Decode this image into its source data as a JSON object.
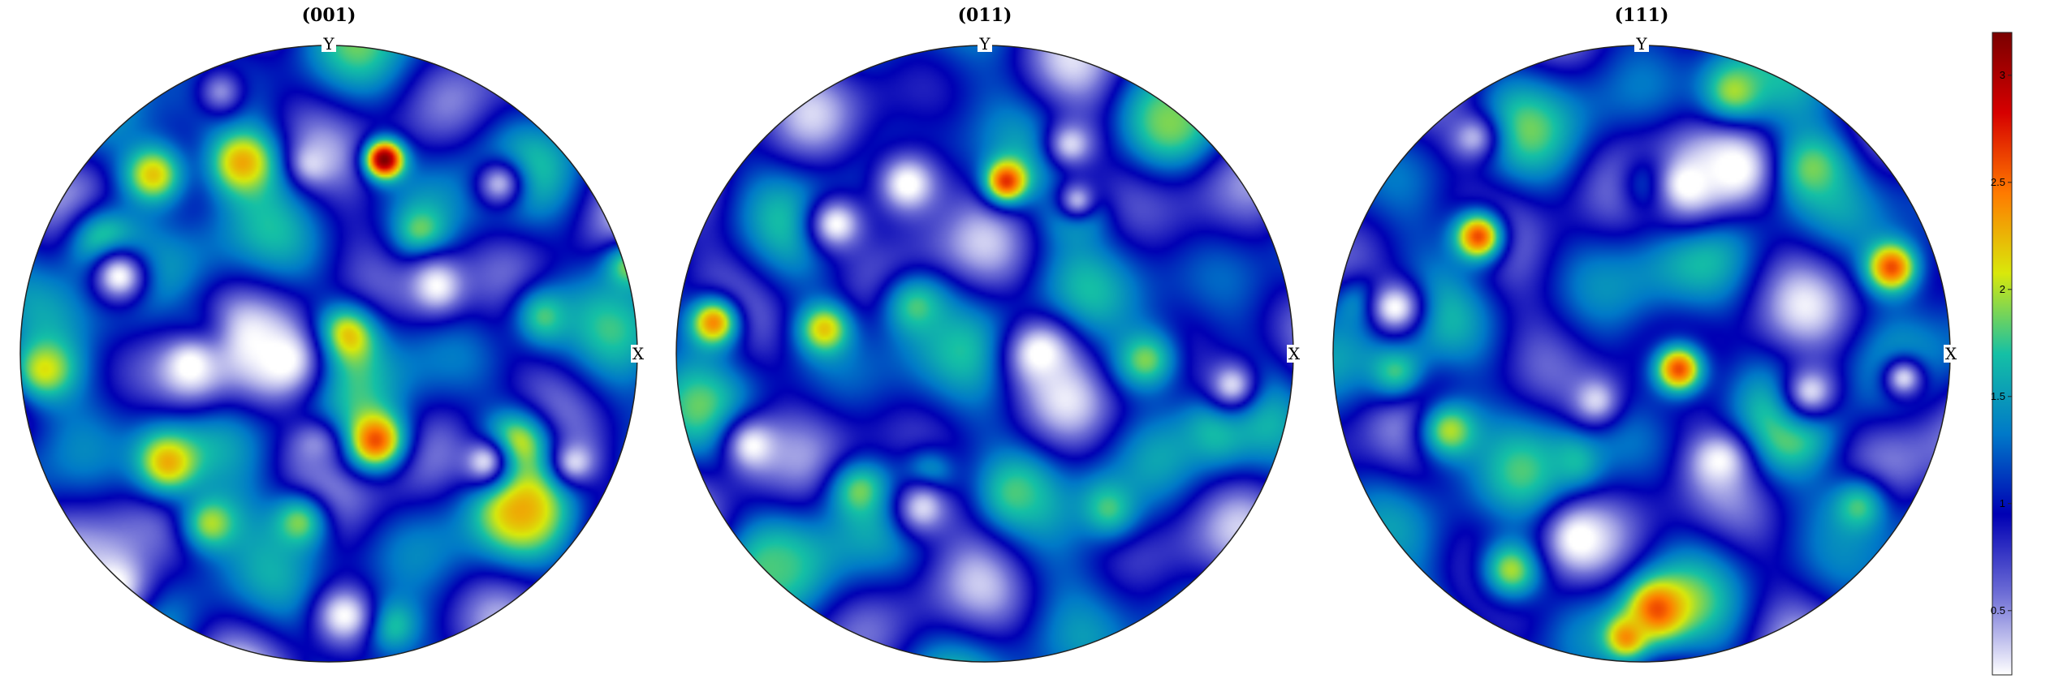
{
  "chart_data": {
    "type": "heatmap",
    "plots": [
      {
        "title": "(001)",
        "axis_labels": {
          "top": "Y",
          "right": "X"
        },
        "blobs": [
          {
            "cx": 0.18,
            "cy": -0.63,
            "s": 0.045,
            "v": 3.2
          },
          {
            "cx": -0.28,
            "cy": -0.62,
            "s": 0.08,
            "v": 2.3
          },
          {
            "cx": -0.57,
            "cy": -0.58,
            "s": 0.08,
            "v": 2.2
          },
          {
            "cx": 0.15,
            "cy": 0.28,
            "s": 0.07,
            "v": 2.6
          },
          {
            "cx": 0.05,
            "cy": -0.05,
            "s": 0.07,
            "v": 2.4
          },
          {
            "cx": -0.72,
            "cy": -0.35,
            "s": 0.09,
            "v": 2.0
          },
          {
            "cx": 0.62,
            "cy": 0.5,
            "s": 0.09,
            "v": 2.3
          },
          {
            "cx": 0.6,
            "cy": 0.3,
            "s": 0.08,
            "v": 2.2
          },
          {
            "cx": -0.52,
            "cy": 0.35,
            "s": 0.08,
            "v": 2.3
          },
          {
            "cx": -0.92,
            "cy": 0.05,
            "s": 0.08,
            "v": 2.1
          },
          {
            "cx": 0.97,
            "cy": -0.28,
            "s": 0.06,
            "v": 1.9
          },
          {
            "cx": -0.38,
            "cy": 0.55,
            "s": 0.07,
            "v": 2.0
          },
          {
            "cx": 0.3,
            "cy": -0.4,
            "s": 0.06,
            "v": 1.9
          },
          {
            "cx": -0.1,
            "cy": 0.55,
            "s": 0.07,
            "v": 1.9
          },
          {
            "cx": 0.7,
            "cy": -0.12,
            "s": 0.07,
            "v": 1.8
          },
          {
            "cx": 0.2,
            "cy": 0.88,
            "s": 0.07,
            "v": 1.8
          },
          {
            "cx": -0.45,
            "cy": -0.05,
            "s": 0.07,
            "v": 1.7
          },
          {
            "cx": -0.45,
            "cy": 0.04,
            "s": 0.1,
            "v": 0.15
          },
          {
            "cx": -0.15,
            "cy": 0.02,
            "s": 0.1,
            "v": 0.15
          },
          {
            "cx": -0.7,
            "cy": 0.75,
            "s": 0.1,
            "v": 0.15
          },
          {
            "cx": -0.68,
            "cy": -0.25,
            "s": 0.07,
            "v": 0.2
          },
          {
            "cx": 0.35,
            "cy": -0.22,
            "s": 0.07,
            "v": 0.2
          },
          {
            "cx": -0.05,
            "cy": -0.62,
            "s": 0.05,
            "v": 0.3
          },
          {
            "cx": 0.05,
            "cy": 0.85,
            "s": 0.07,
            "v": 0.2
          },
          {
            "cx": 0.5,
            "cy": 0.35,
            "s": 0.06,
            "v": 0.3
          },
          {
            "cx": 0.8,
            "cy": 0.35,
            "s": 0.05,
            "v": 0.3
          },
          {
            "cx": 0.55,
            "cy": -0.55,
            "s": 0.06,
            "v": 0.4
          },
          {
            "cx": -0.35,
            "cy": -0.85,
            "s": 0.06,
            "v": 0.5
          },
          {
            "cx": -0.05,
            "cy": 0.3,
            "s": 0.06,
            "v": 0.5
          }
        ]
      },
      {
        "title": "(011)",
        "axis_labels": {
          "top": "Y",
          "right": "X"
        },
        "blobs": [
          {
            "cx": 0.07,
            "cy": -0.56,
            "s": 0.05,
            "v": 2.7
          },
          {
            "cx": -0.88,
            "cy": -0.1,
            "s": 0.06,
            "v": 2.4
          },
          {
            "cx": -0.52,
            "cy": -0.08,
            "s": 0.06,
            "v": 2.2
          },
          {
            "cx": 0.52,
            "cy": 0.02,
            "s": 0.08,
            "v": 1.9
          },
          {
            "cx": 0.6,
            "cy": -0.75,
            "s": 0.09,
            "v": 1.9
          },
          {
            "cx": -0.22,
            "cy": -0.15,
            "s": 0.08,
            "v": 1.8
          },
          {
            "cx": 0.1,
            "cy": 0.45,
            "s": 0.07,
            "v": 1.8
          },
          {
            "cx": -0.4,
            "cy": 0.45,
            "s": 0.07,
            "v": 1.9
          },
          {
            "cx": 0.4,
            "cy": 0.5,
            "s": 0.07,
            "v": 1.8
          },
          {
            "cx": -0.7,
            "cy": 0.7,
            "s": 0.08,
            "v": 1.8
          },
          {
            "cx": -0.18,
            "cy": 0.4,
            "s": 0.06,
            "v": 1.7
          },
          {
            "cx": 0.3,
            "cy": -0.45,
            "s": 0.06,
            "v": 1.7
          },
          {
            "cx": 0.75,
            "cy": 0.25,
            "s": 0.07,
            "v": 1.7
          },
          {
            "cx": -0.25,
            "cy": -0.55,
            "s": 0.09,
            "v": 0.15
          },
          {
            "cx": -0.48,
            "cy": -0.42,
            "s": 0.07,
            "v": 0.2
          },
          {
            "cx": 0.18,
            "cy": 0.0,
            "s": 0.08,
            "v": 0.15
          },
          {
            "cx": -0.75,
            "cy": 0.3,
            "s": 0.07,
            "v": 0.2
          },
          {
            "cx": -0.2,
            "cy": 0.5,
            "s": 0.07,
            "v": 0.3
          },
          {
            "cx": 0.8,
            "cy": 0.1,
            "s": 0.06,
            "v": 0.3
          },
          {
            "cx": 0.28,
            "cy": -0.68,
            "s": 0.06,
            "v": 0.3
          },
          {
            "cx": 0.3,
            "cy": -0.5,
            "s": 0.05,
            "v": 0.4
          }
        ]
      },
      {
        "title": "(111)",
        "axis_labels": {
          "top": "Y",
          "right": "X"
        },
        "blobs": [
          {
            "cx": -0.53,
            "cy": -0.38,
            "s": 0.06,
            "v": 2.6
          },
          {
            "cx": 0.81,
            "cy": -0.28,
            "s": 0.06,
            "v": 2.6
          },
          {
            "cx": 0.12,
            "cy": 0.05,
            "s": 0.06,
            "v": 2.6
          },
          {
            "cx": 0.05,
            "cy": 0.83,
            "s": 0.07,
            "v": 2.6
          },
          {
            "cx": -0.05,
            "cy": 0.92,
            "s": 0.05,
            "v": 2.4
          },
          {
            "cx": 0.3,
            "cy": -0.85,
            "s": 0.08,
            "v": 2.0
          },
          {
            "cx": 0.55,
            "cy": -0.6,
            "s": 0.08,
            "v": 1.9
          },
          {
            "cx": -0.62,
            "cy": 0.25,
            "s": 0.08,
            "v": 2.0
          },
          {
            "cx": 0.48,
            "cy": 0.25,
            "s": 0.08,
            "v": 1.9
          },
          {
            "cx": -0.42,
            "cy": 0.7,
            "s": 0.08,
            "v": 2.0
          },
          {
            "cx": 0.7,
            "cy": 0.5,
            "s": 0.07,
            "v": 1.8
          },
          {
            "cx": -0.8,
            "cy": 0.05,
            "s": 0.07,
            "v": 1.8
          },
          {
            "cx": -0.9,
            "cy": -0.15,
            "s": 0.06,
            "v": 1.7
          },
          {
            "cx": 0.05,
            "cy": -0.55,
            "s": 0.07,
            "v": 1.8
          },
          {
            "cx": -0.22,
            "cy": 0.35,
            "s": 0.06,
            "v": 1.7
          },
          {
            "cx": 0.15,
            "cy": -0.55,
            "s": 0.1,
            "v": 0.15
          },
          {
            "cx": 0.3,
            "cy": -0.6,
            "s": 0.08,
            "v": 0.15
          },
          {
            "cx": -0.8,
            "cy": -0.15,
            "s": 0.07,
            "v": 0.2
          },
          {
            "cx": -0.2,
            "cy": 0.6,
            "s": 0.08,
            "v": 0.15
          },
          {
            "cx": 0.25,
            "cy": 0.35,
            "s": 0.07,
            "v": 0.2
          },
          {
            "cx": 0.55,
            "cy": 0.12,
            "s": 0.07,
            "v": 0.3
          },
          {
            "cx": -0.15,
            "cy": 0.15,
            "s": 0.06,
            "v": 0.3
          },
          {
            "cx": 0.85,
            "cy": 0.08,
            "s": 0.05,
            "v": 0.3
          },
          {
            "cx": -0.55,
            "cy": -0.7,
            "s": 0.06,
            "v": 0.4
          }
        ]
      }
    ],
    "colorbar": {
      "range": [
        0.2,
        3.2
      ],
      "ticks": [
        {
          "value": 0.5,
          "label": "0.5"
        },
        {
          "value": 1.0,
          "label": "1"
        },
        {
          "value": 1.5,
          "label": "1.5"
        },
        {
          "value": 2.0,
          "label": "2"
        },
        {
          "value": 2.5,
          "label": "2.5"
        },
        {
          "value": 3.0,
          "label": "3"
        }
      ],
      "colormap": [
        "#ffffff",
        "#6f6fd6",
        "#0000b4",
        "#0079c8",
        "#15c0a5",
        "#d9e80b",
        "#ff7a00",
        "#d60000",
        "#7a0000"
      ]
    }
  }
}
